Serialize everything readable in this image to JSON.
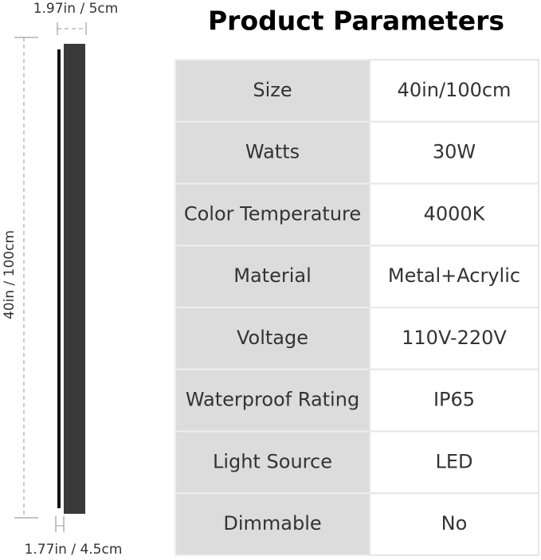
{
  "header": {
    "title": "Product Parameters"
  },
  "dimensions": {
    "top_width": "1.97in / 5cm",
    "height": "40in / 100cm",
    "bottom_width": "1.77in / 4.5cm"
  },
  "table": {
    "rows": [
      [
        "Size",
        "40in/100cm"
      ],
      [
        "Watts",
        "30W"
      ],
      [
        "Color Temperature",
        "4000K"
      ],
      [
        "Material",
        "Metal+Acrylic"
      ],
      [
        "Voltage",
        "110V-220V"
      ],
      [
        "Waterproof Rating",
        "IP65"
      ],
      [
        "Light Source",
        "LED"
      ],
      [
        "Dimmable",
        "No"
      ]
    ]
  }
}
